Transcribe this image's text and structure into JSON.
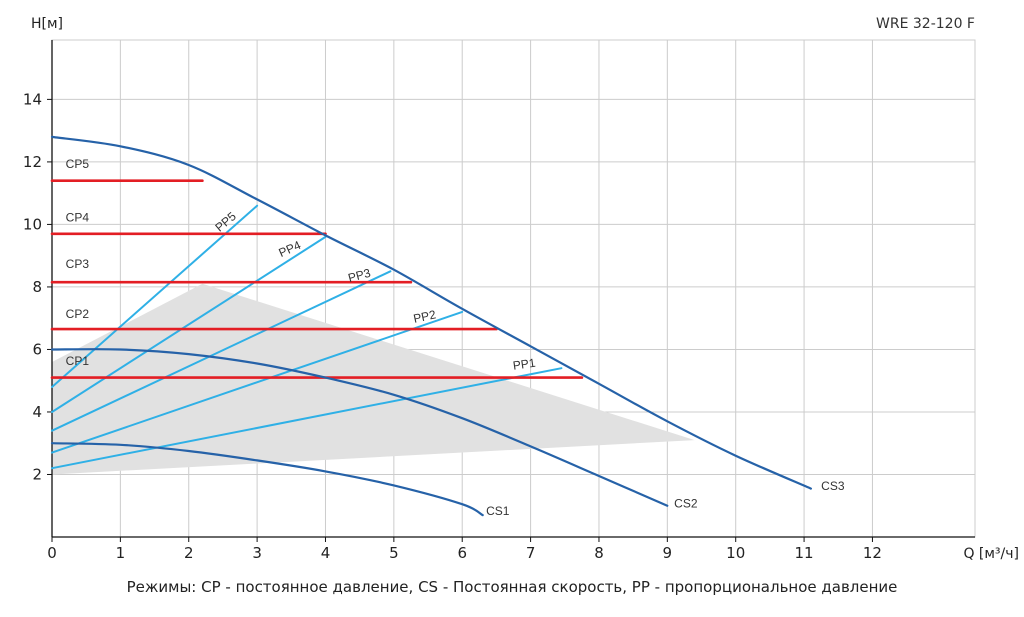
{
  "chart_data": {
    "type": "line",
    "title": "WRE 32-120 F",
    "xlabel": "Q [м³/ч]",
    "ylabel": "H[м]",
    "xlim": [
      0,
      13.5
    ],
    "ylim": [
      0,
      15.9
    ],
    "x_ticks": [
      "0",
      "1",
      "2",
      "3",
      "4",
      "5",
      "6",
      "7",
      "8",
      "9",
      "10",
      "11",
      "12"
    ],
    "y_ticks": [
      "2",
      "4",
      "6",
      "8",
      "10",
      "12",
      "14"
    ],
    "grid": true,
    "colors": {
      "cs": "#2662a8",
      "pp": "#2fb0e6",
      "cp": "#e31e24",
      "area": "#e1e1e1",
      "grid": "#cccccc"
    },
    "operating_area": [
      [
        0,
        5.6
      ],
      [
        2.2,
        8.1
      ],
      [
        9.4,
        3.1
      ],
      [
        0,
        2.0
      ]
    ],
    "series": [
      {
        "name": "CS1",
        "group": "cs",
        "x": [
          0,
          1,
          2,
          3,
          4,
          5,
          6,
          6.3
        ],
        "y": [
          3.0,
          2.95,
          2.75,
          2.45,
          2.1,
          1.65,
          1.05,
          0.7
        ]
      },
      {
        "name": "CS2",
        "group": "cs",
        "x": [
          0,
          1,
          2,
          3,
          4,
          5,
          6,
          7,
          8,
          9
        ],
        "y": [
          6.0,
          6.0,
          5.85,
          5.55,
          5.1,
          4.55,
          3.8,
          2.9,
          1.95,
          1.0
        ]
      },
      {
        "name": "CS3",
        "group": "cs",
        "x": [
          0,
          1,
          2,
          3,
          4,
          5,
          6,
          7,
          8,
          9,
          10,
          11.1
        ],
        "y": [
          12.8,
          12.5,
          11.9,
          10.8,
          9.65,
          8.55,
          7.3,
          6.1,
          4.9,
          3.7,
          2.6,
          1.55
        ]
      },
      {
        "name": "CP1",
        "group": "cp",
        "x": [
          0,
          7.75
        ],
        "y": [
          5.1,
          5.1
        ]
      },
      {
        "name": "CP2",
        "group": "cp",
        "x": [
          0,
          6.5
        ],
        "y": [
          6.65,
          6.65
        ]
      },
      {
        "name": "CP3",
        "group": "cp",
        "x": [
          0,
          5.25
        ],
        "y": [
          8.15,
          8.15
        ]
      },
      {
        "name": "CP4",
        "group": "cp",
        "x": [
          0,
          4.0
        ],
        "y": [
          9.7,
          9.7
        ]
      },
      {
        "name": "CP5",
        "group": "cp",
        "x": [
          0,
          2.2
        ],
        "y": [
          11.4,
          11.4
        ]
      },
      {
        "name": "PP1",
        "group": "pp",
        "x": [
          0,
          7.45
        ],
        "y": [
          2.2,
          5.4
        ]
      },
      {
        "name": "PP2",
        "group": "pp",
        "x": [
          0,
          6.0
        ],
        "y": [
          2.7,
          7.2
        ]
      },
      {
        "name": "PP3",
        "group": "pp",
        "x": [
          0,
          4.95
        ],
        "y": [
          3.4,
          8.5
        ]
      },
      {
        "name": "PP4",
        "group": "pp",
        "x": [
          0,
          4.0
        ],
        "y": [
          4.0,
          9.6
        ]
      },
      {
        "name": "PP5",
        "group": "pp",
        "x": [
          0,
          3.0
        ],
        "y": [
          4.8,
          10.6
        ]
      }
    ],
    "labels": [
      {
        "text": "CP5",
        "x": 0.2,
        "y": 11.8,
        "rot": 0
      },
      {
        "text": "CP4",
        "x": 0.2,
        "y": 10.1,
        "rot": 0
      },
      {
        "text": "CP3",
        "x": 0.2,
        "y": 8.6,
        "rot": 0
      },
      {
        "text": "CP2",
        "x": 0.2,
        "y": 7.0,
        "rot": 0
      },
      {
        "text": "CP1",
        "x": 0.2,
        "y": 5.5,
        "rot": 0
      },
      {
        "text": "PP5",
        "x": 2.45,
        "y": 9.75,
        "rot": -40
      },
      {
        "text": "PP4",
        "x": 3.35,
        "y": 8.95,
        "rot": -24
      },
      {
        "text": "PP3",
        "x": 4.35,
        "y": 8.15,
        "rot": -15
      },
      {
        "text": "PP2",
        "x": 5.3,
        "y": 6.85,
        "rot": -12
      },
      {
        "text": "PP1",
        "x": 6.75,
        "y": 5.35,
        "rot": -8
      },
      {
        "text": "CS1",
        "x": 6.35,
        "y": 0.7,
        "rot": 0
      },
      {
        "text": "CS2",
        "x": 9.1,
        "y": 0.95,
        "rot": 0
      },
      {
        "text": "CS3",
        "x": 11.25,
        "y": 1.5,
        "rot": 0
      }
    ]
  },
  "caption": "Режимы: CP - постоянное давление, CS - Постоянная скорость, PP - пропорциональное давление"
}
